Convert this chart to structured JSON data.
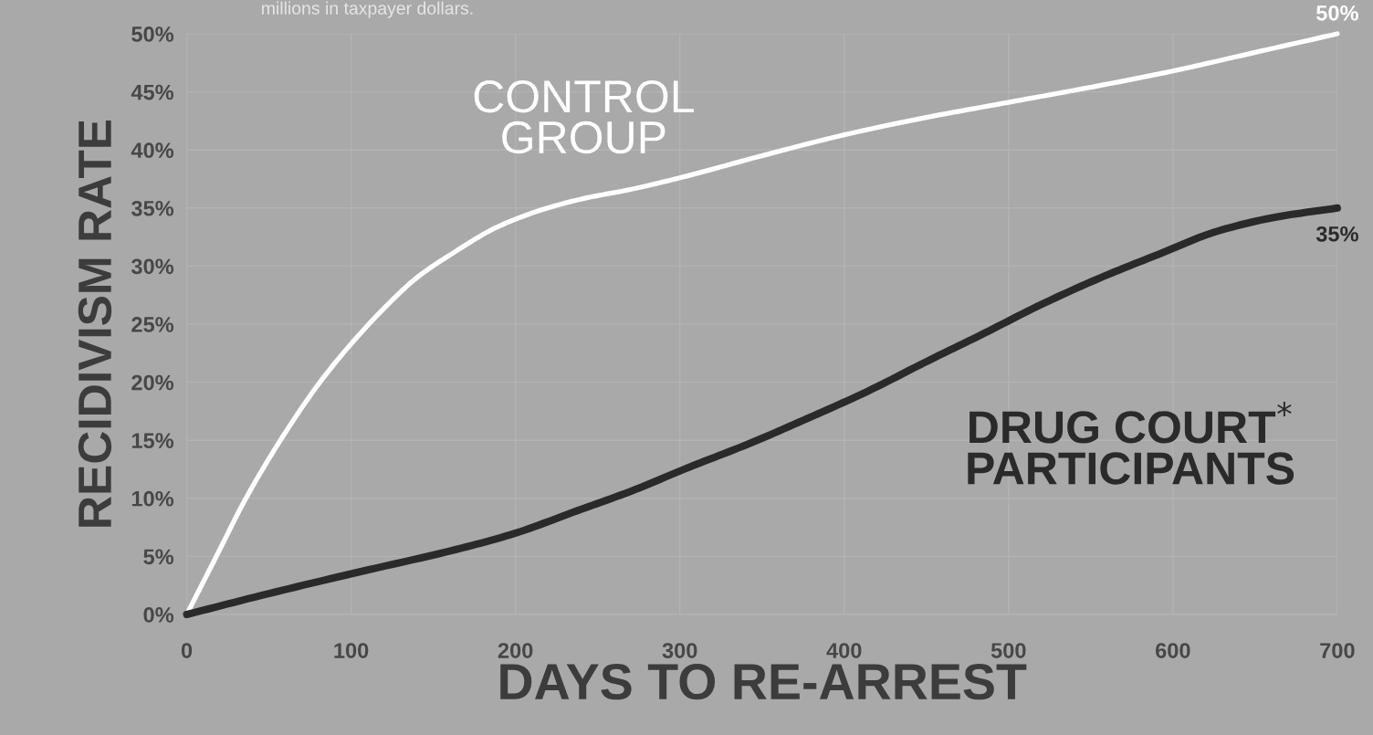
{
  "chart_data": {
    "type": "line",
    "xlabel": "DAYS TO RE-ARREST",
    "ylabel": "RECIDIVISM RATE",
    "annotations": [
      "millions in taxpayer dollars."
    ],
    "series": [
      {
        "name": "CONTROL\nGROUP",
        "color": "#ffffff",
        "x": [
          0,
          18,
          36,
          57,
          80,
          100,
          121,
          140,
          164,
          188,
          215,
          241,
          270,
          300,
          350,
          400,
          450,
          500,
          550,
          600,
          650,
          700
        ],
        "values": [
          0,
          5,
          10,
          15,
          19.8,
          23.3,
          26.5,
          29,
          31.3,
          33.3,
          34.8,
          35.8,
          36.6,
          37.6,
          39.5,
          41.3,
          42.8,
          44.1,
          45.4,
          46.8,
          48.4,
          50
        ],
        "value_labels": [
          null,
          null,
          null,
          null,
          null,
          null,
          null,
          null,
          null,
          null,
          null,
          null,
          null,
          null,
          null,
          null,
          null,
          null,
          null,
          null,
          null,
          "50%"
        ]
      },
      {
        "name": "DRUG COURT$^{*}$\nPARTICIPANTS",
        "color": "#2a2a2a",
        "x": [
          0,
          50,
          100,
          164,
          200,
          235,
          270,
          306,
          342,
          378,
          414,
          449,
          485,
          520,
          556,
          591,
          627,
          662,
          700
        ],
        "values": [
          0,
          1.8,
          3.5,
          5.6,
          7,
          8.8,
          10.6,
          12.7,
          14.7,
          16.9,
          19.2,
          21.7,
          24.2,
          26.7,
          29,
          31,
          33,
          34.2,
          35
        ],
        "value_labels": [
          null,
          null,
          null,
          null,
          null,
          null,
          null,
          null,
          null,
          null,
          null,
          null,
          null,
          null,
          null,
          null,
          null,
          null,
          "35%"
        ]
      }
    ],
    "xlim": [
      0,
      700
    ],
    "ylim": [
      0,
      50
    ],
    "xticks": [
      0,
      100,
      200,
      300,
      400,
      500,
      600,
      700
    ],
    "yticks": [
      {
        "value": 0,
        "label": "0%"
      },
      {
        "value": 5,
        "label": "5%"
      },
      {
        "value": 10,
        "label": "10%"
      },
      {
        "value": 15,
        "label": "15%"
      },
      {
        "value": 20,
        "label": "20%"
      },
      {
        "value": 25,
        "label": "25%"
      },
      {
        "value": 30,
        "label": "30%"
      },
      {
        "value": 35,
        "label": "35%"
      },
      {
        "value": 40,
        "label": "40%"
      },
      {
        "value": 45,
        "label": "45%"
      },
      {
        "value": 50,
        "label": "50%"
      }
    ],
    "grid": true,
    "line_style": "solid"
  }
}
